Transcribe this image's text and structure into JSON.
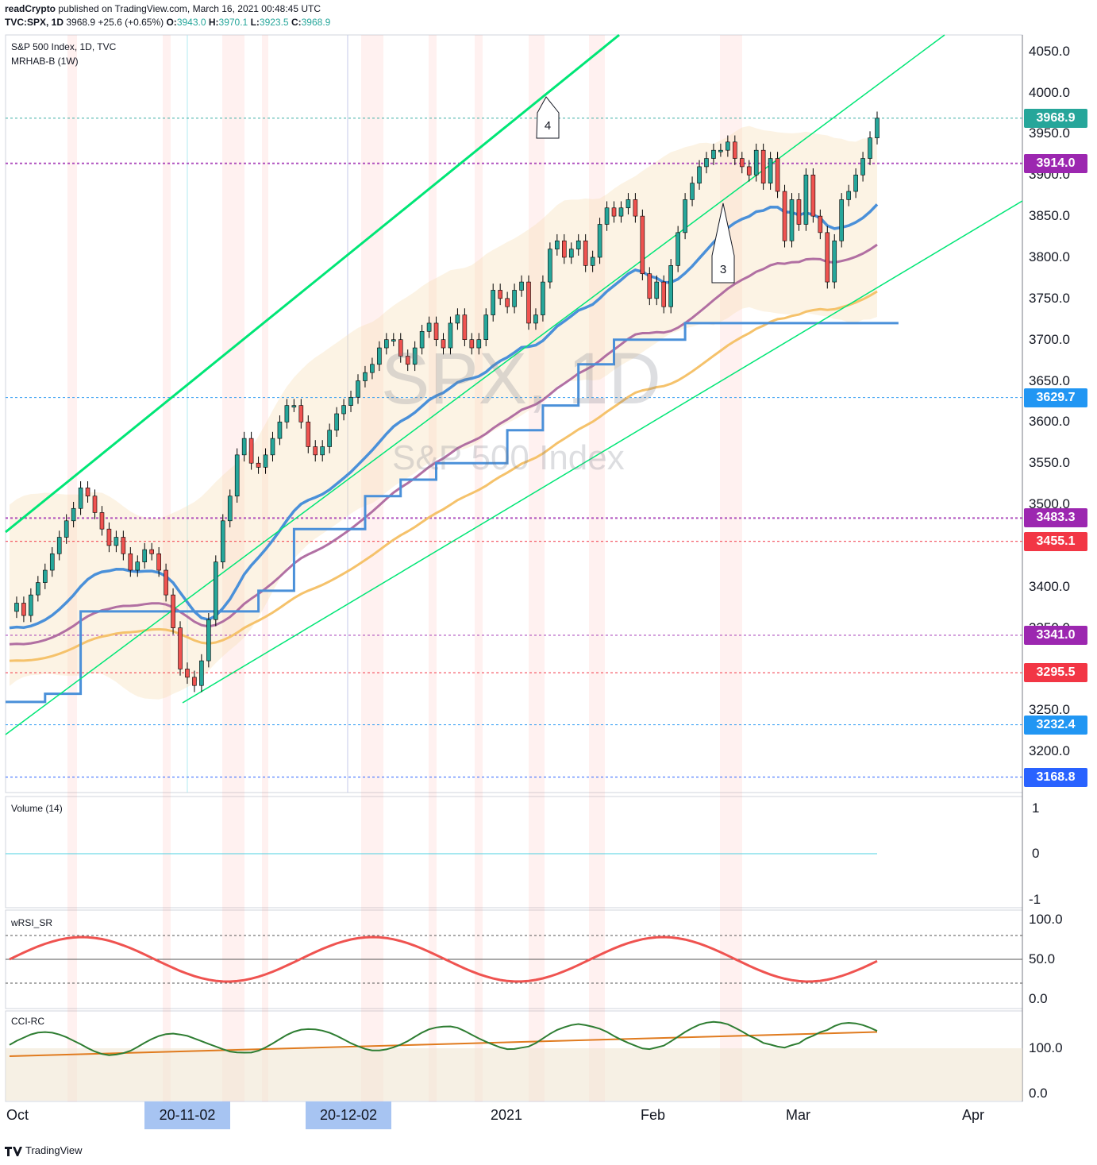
{
  "header": {
    "line1_author": "readCrypto",
    "line1_rest": "published on TradingView.com, March 16, 2021 00:48:45 UTC",
    "symbol": "TVC:SPX, 1D",
    "change": "3968.9 +25.6 (+0.65%)",
    "o_label": "O:",
    "o": "3943.0",
    "h_label": "H:",
    "h": "3970.1",
    "l_label": "L:",
    "l": "3923.5",
    "c_label": "C:",
    "c": "3968.9"
  },
  "main_pane": {
    "title": "S&P 500 Index, 1D, TVC",
    "indicator": "MRHAB-B (1W)",
    "watermark_symbol": "SPX, 1D",
    "watermark_name": "S&P 500 Index",
    "annotation_4": "4",
    "annotation_3": "3"
  },
  "price_labels": [
    {
      "text": "3968.9",
      "color": "#26a69a"
    },
    {
      "text": "3914.0",
      "color": "#9c27b0"
    },
    {
      "text": "3629.7",
      "color": "#2196f3"
    },
    {
      "text": "3483.3",
      "color": "#9c27b0"
    },
    {
      "text": "3455.1",
      "color": "#f23645"
    },
    {
      "text": "3341.0",
      "color": "#9c27b0"
    },
    {
      "text": "3295.5",
      "color": "#f23645"
    },
    {
      "text": "3232.4",
      "color": "#2196f3"
    },
    {
      "text": "3168.8",
      "color": "#2962ff"
    }
  ],
  "y_axis_labels": [
    "4050.0",
    "4000.0",
    "3950.0",
    "3900.0",
    "3850.0",
    "3800.0",
    "3750.0",
    "3700.0",
    "3650.0",
    "3600.0",
    "3550.0",
    "3500.0",
    "3450.0",
    "3400.0",
    "3350.0",
    "3300.0",
    "3250.0",
    "3200.0"
  ],
  "volume_pane": {
    "title": "Volume (14)",
    "ticks": [
      "1",
      "0",
      "-1"
    ]
  },
  "wrsi_pane": {
    "title": "wRSI_SR",
    "ticks": [
      "100.0",
      "50.0",
      "0.0"
    ]
  },
  "cci_pane": {
    "title": "CCI-RC",
    "ticks": [
      "100.0",
      "0.0"
    ]
  },
  "x_axis": {
    "labels": [
      "Oct",
      "2021",
      "Feb",
      "Mar",
      "Apr"
    ],
    "highlight_1": "20-11-02",
    "highlight_2": "20-12-02"
  },
  "footer": {
    "brand": "TradingView"
  },
  "colors": {
    "up": "#26a69a",
    "down": "#ef5350",
    "channel": "#00e676",
    "ema_blue": "#4a90d9",
    "ema_orange": "#f5c26b",
    "ema_purple": "#a8609a"
  },
  "chart_data": {
    "type": "candlestick",
    "symbol": "SPX",
    "interval": "1D",
    "ylim": [
      3150,
      4070
    ],
    "key_levels": [
      3968.9,
      3914.0,
      3629.7,
      3483.3,
      3455.1,
      3341.0,
      3295.5,
      3232.4,
      3168.8
    ],
    "close_series": [
      3370,
      3380,
      3365,
      3390,
      3405,
      3420,
      3440,
      3460,
      3480,
      3495,
      3520,
      3510,
      3490,
      3470,
      3450,
      3460,
      3440,
      3420,
      3430,
      3445,
      3440,
      3420,
      3390,
      3350,
      3300,
      3290,
      3280,
      3310,
      3360,
      3430,
      3480,
      3510,
      3560,
      3580,
      3550,
      3545,
      3560,
      3580,
      3600,
      3620,
      3620,
      3600,
      3570,
      3560,
      3570,
      3590,
      3610,
      3620,
      3630,
      3650,
      3660,
      3670,
      3690,
      3700,
      3700,
      3680,
      3670,
      3690,
      3710,
      3720,
      3700,
      3690,
      3720,
      3730,
      3700,
      3690,
      3700,
      3730,
      3760,
      3750,
      3740,
      3760,
      3770,
      3720,
      3730,
      3770,
      3810,
      3820,
      3800,
      3810,
      3820,
      3790,
      3800,
      3840,
      3860,
      3850,
      3860,
      3870,
      3850,
      3780,
      3750,
      3770,
      3740,
      3790,
      3830,
      3870,
      3890,
      3910,
      3920,
      3930,
      3930,
      3940,
      3920,
      3910,
      3900,
      3930,
      3890,
      3920,
      3880,
      3820,
      3870,
      3840,
      3900,
      3850,
      3830,
      3770,
      3820,
      3870,
      3880,
      3900,
      3920,
      3945,
      3968.9
    ],
    "x_start": "2020-09-25",
    "x_end": "2021-03-15"
  }
}
